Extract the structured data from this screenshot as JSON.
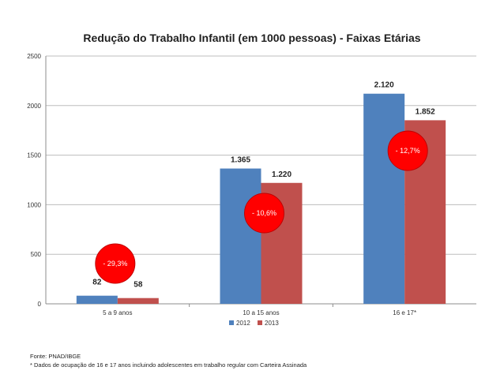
{
  "chart_data": {
    "type": "bar",
    "title": "Redução do Trabalho Infantil (em 1000 pessoas) - Faixas Etárias",
    "categories": [
      "5 a 9 anos",
      "10 a 15 anos",
      "16 e 17*"
    ],
    "series": [
      {
        "name": "2012",
        "values": [
          82,
          1365,
          2120
        ],
        "labels": [
          "82",
          "1.365",
          "2.120"
        ],
        "color": "#4f81bd"
      },
      {
        "name": "2013",
        "values": [
          58,
          1220,
          1852
        ],
        "labels": [
          "58",
          "1.220",
          "1.852"
        ],
        "color": "#c0504d"
      }
    ],
    "ylim": [
      0,
      2500
    ],
    "yticks": [
      0,
      500,
      1000,
      1500,
      2000,
      2500
    ],
    "grid": true,
    "legend_position": "bottom",
    "annotations": [
      {
        "text": "- 29,3%",
        "category": "5 a 9 anos"
      },
      {
        "text": "- 10,6%",
        "category": "10 a 15 anos"
      },
      {
        "text": "- 12,7%",
        "category": "16 e 17*"
      }
    ],
    "annotation_color": "#ff0000"
  },
  "footnotes": {
    "source": "Fonte: PNAD/IBGE",
    "note": "* Dados de ocupação de 16 e 17 anos incluindo adolescentes em trabalho regular com Carteira Assinada"
  }
}
